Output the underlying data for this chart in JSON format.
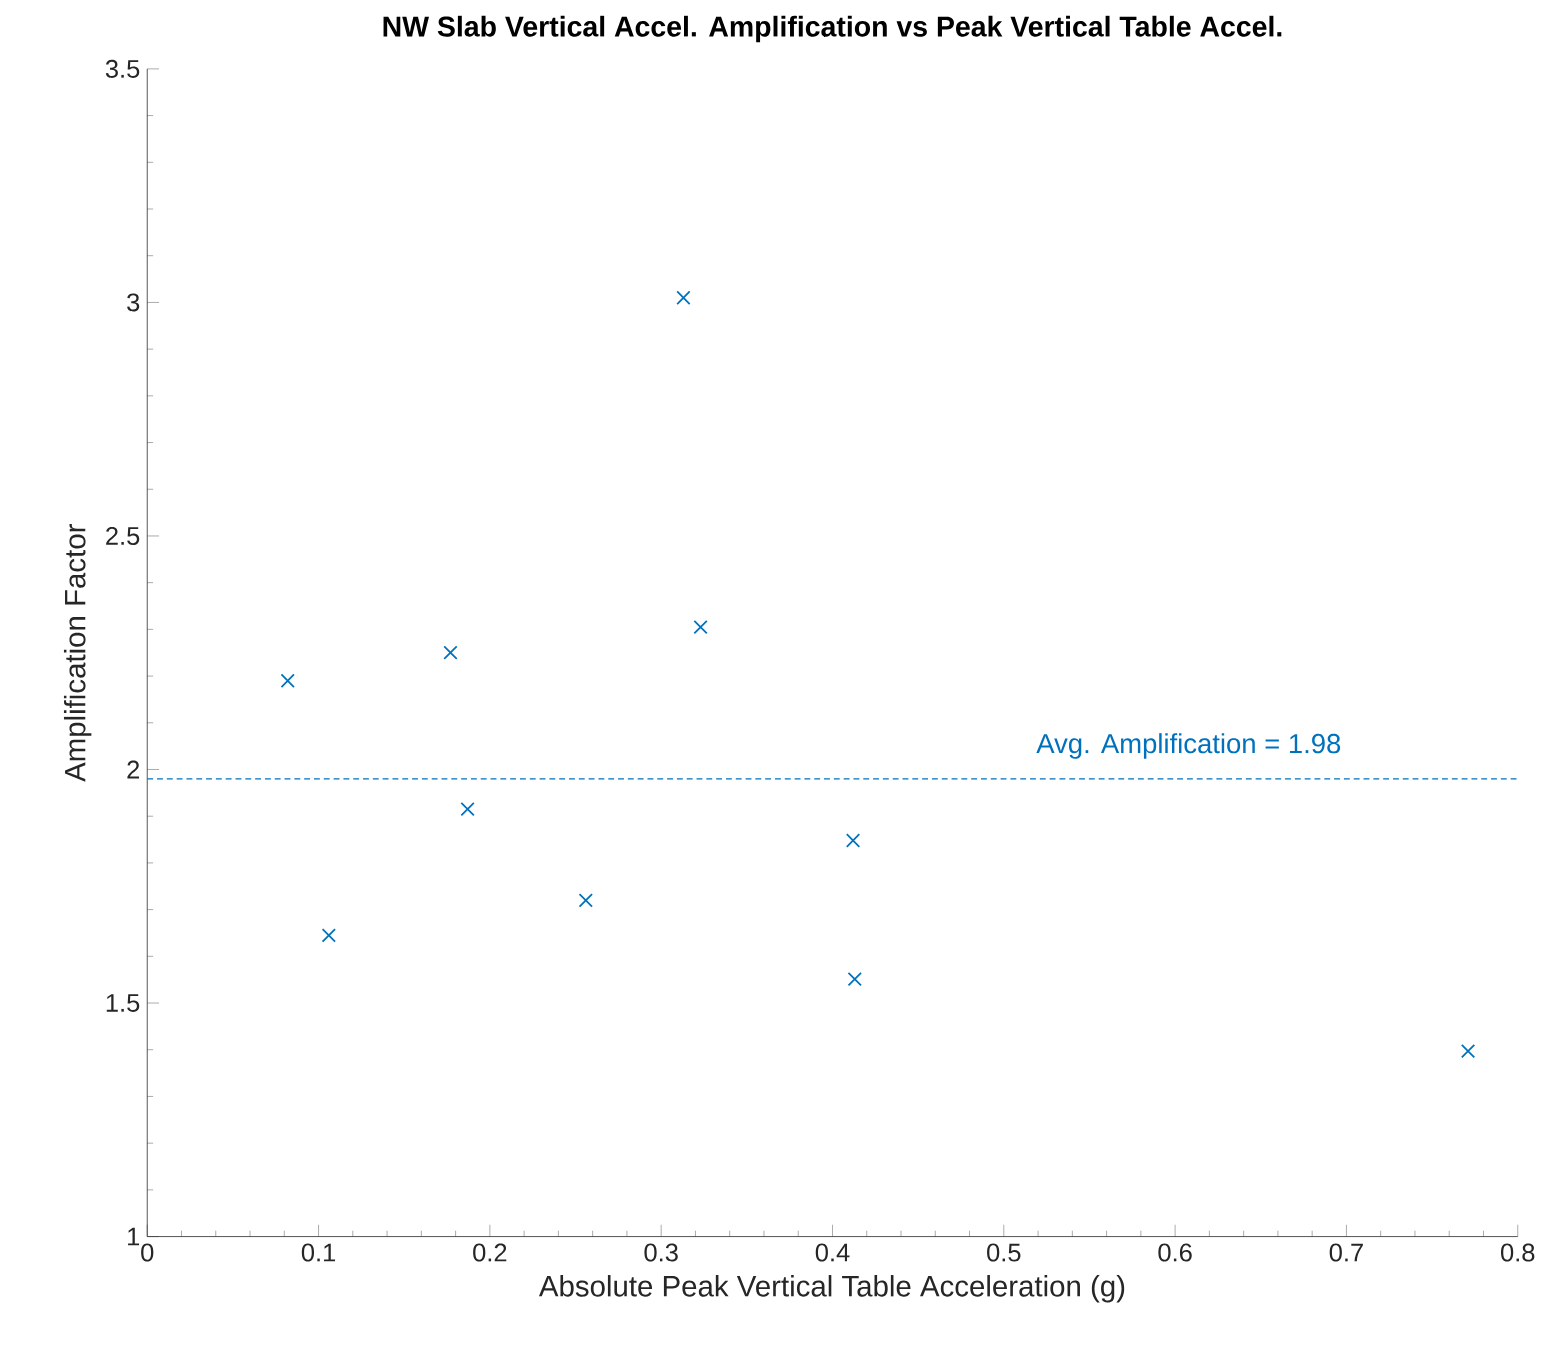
{
  "chart_data": {
    "type": "scatter",
    "title": "NW Slab Vertical Accel. Amplification vs Peak Vertical Table Accel.",
    "xlabel": "Absolute Peak Vertical Table Acceleration (g)",
    "ylabel": "Amplification Factor",
    "x": [
      0.082,
      0.106,
      0.177,
      0.187,
      0.256,
      0.313,
      0.323,
      0.412,
      0.413,
      0.771
    ],
    "values": [
      2.19,
      1.645,
      2.25,
      1.915,
      1.72,
      3.01,
      2.305,
      1.848,
      1.551,
      1.397
    ],
    "color": "#0072bd",
    "marker": "cross",
    "xlim": [
      0,
      0.8
    ],
    "xticks": [
      0,
      0.1,
      0.2,
      0.3,
      0.4,
      0.5,
      0.6,
      0.7,
      0.8
    ],
    "ylim": [
      1,
      3.5
    ],
    "yticks": [
      1,
      1.5,
      2,
      2.5,
      3,
      3.5
    ],
    "ref_lines": [
      {
        "axis": "y",
        "value": 1.98,
        "label": "Avg. Amplification = 1.98",
        "color": "#0072bd",
        "line_style": "dashed"
      }
    ]
  }
}
